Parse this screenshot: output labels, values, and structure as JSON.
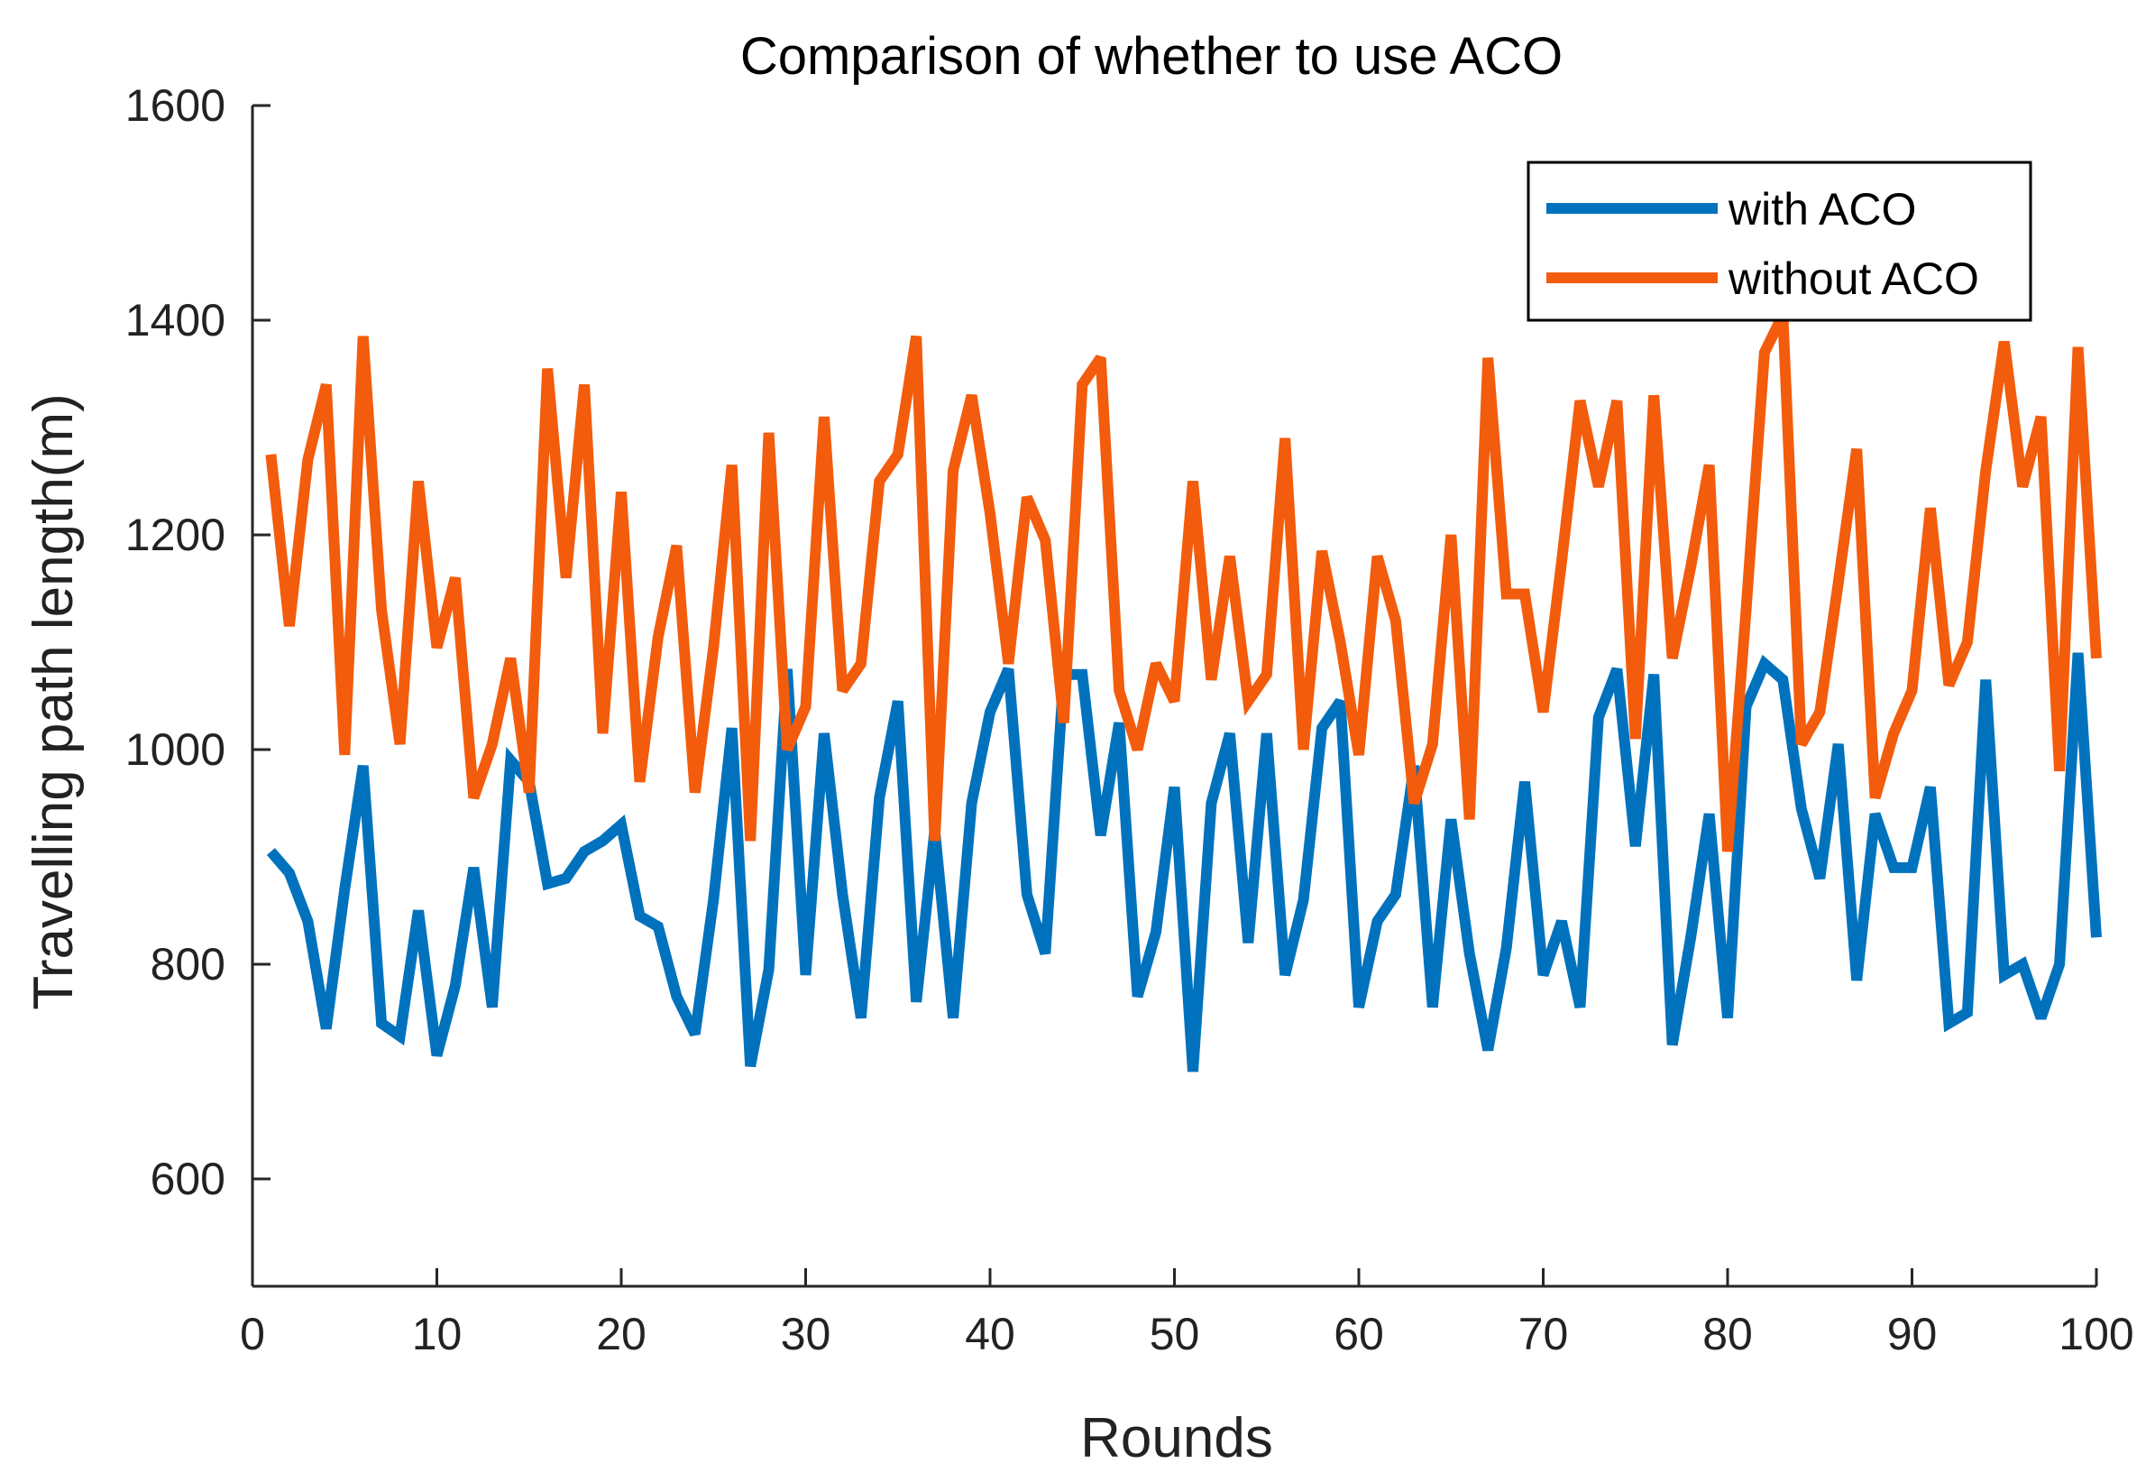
{
  "chart_data": {
    "type": "line",
    "title": "Comparison of whether to use ACO",
    "xlabel": "Rounds",
    "ylabel": "Travelling path length(m)",
    "xlim": [
      0,
      100
    ],
    "ylim": [
      500,
      1600
    ],
    "xticks": [
      0,
      10,
      20,
      30,
      40,
      50,
      60,
      70,
      80,
      90,
      100
    ],
    "yticks": [
      600,
      800,
      1000,
      1200,
      1400,
      1600
    ],
    "grid": false,
    "legend_position": "top-right",
    "series": [
      {
        "name": "with ACO",
        "color": "#0072BD",
        "x": [
          1,
          2,
          3,
          4,
          5,
          6,
          7,
          8,
          9,
          10,
          11,
          12,
          13,
          14,
          15,
          16,
          17,
          18,
          19,
          20,
          21,
          22,
          23,
          24,
          25,
          26,
          27,
          28,
          29,
          30,
          31,
          32,
          33,
          34,
          35,
          36,
          37,
          38,
          39,
          40,
          41,
          42,
          43,
          44,
          45,
          46,
          47,
          48,
          49,
          50,
          51,
          52,
          53,
          54,
          55,
          56,
          57,
          58,
          59,
          60,
          61,
          62,
          63,
          64,
          65,
          66,
          67,
          68,
          69,
          70,
          71,
          72,
          73,
          74,
          75,
          76,
          77,
          78,
          79,
          80,
          81,
          82,
          83,
          84,
          85,
          86,
          87,
          88,
          89,
          90,
          91,
          92,
          93,
          94,
          95,
          96,
          97,
          98,
          99,
          100
        ],
        "values": [
          905,
          885,
          840,
          740,
          870,
          985,
          745,
          733,
          850,
          715,
          780,
          890,
          760,
          990,
          970,
          875,
          880,
          905,
          915,
          930,
          845,
          835,
          770,
          735,
          860,
          1020,
          705,
          795,
          1075,
          790,
          1015,
          865,
          750,
          955,
          1045,
          765,
          925,
          750,
          950,
          1035,
          1075,
          865,
          810,
          1070,
          1070,
          920,
          1025,
          770,
          830,
          965,
          700,
          950,
          1015,
          820,
          1015,
          790,
          860,
          1020,
          1045,
          760,
          840,
          865,
          985,
          760,
          935,
          810,
          720,
          815,
          970,
          790,
          840,
          760,
          1030,
          1075,
          910,
          1070,
          725,
          825,
          940,
          750,
          1040,
          1080,
          1065,
          945,
          880,
          1005,
          785,
          940,
          890,
          890,
          965,
          745,
          755,
          1065,
          790,
          800,
          750,
          800,
          1090,
          825
        ]
      },
      {
        "name": "without ACO",
        "color": "#F25C0C",
        "x": [
          1,
          2,
          3,
          4,
          5,
          6,
          7,
          8,
          9,
          10,
          11,
          12,
          13,
          14,
          15,
          16,
          17,
          18,
          19,
          20,
          21,
          22,
          23,
          24,
          25,
          26,
          27,
          28,
          29,
          30,
          31,
          32,
          33,
          34,
          35,
          36,
          37,
          38,
          39,
          40,
          41,
          42,
          43,
          44,
          45,
          46,
          47,
          48,
          49,
          50,
          51,
          52,
          53,
          54,
          55,
          56,
          57,
          58,
          59,
          60,
          61,
          62,
          63,
          64,
          65,
          66,
          67,
          68,
          69,
          70,
          71,
          72,
          73,
          74,
          75,
          76,
          77,
          78,
          79,
          80,
          81,
          82,
          83,
          84,
          85,
          86,
          87,
          88,
          89,
          90,
          91,
          92,
          93,
          94,
          95,
          96,
          97,
          98,
          99,
          100
        ],
        "values": [
          1275,
          1115,
          1270,
          1340,
          995,
          1385,
          1130,
          1005,
          1250,
          1095,
          1160,
          955,
          1005,
          1085,
          960,
          1355,
          1160,
          1340,
          1015,
          1240,
          970,
          1105,
          1190,
          960,
          1095,
          1265,
          915,
          1295,
          1000,
          1040,
          1310,
          1055,
          1080,
          1250,
          1275,
          1385,
          915,
          1260,
          1330,
          1220,
          1080,
          1235,
          1195,
          1025,
          1340,
          1365,
          1055,
          1000,
          1080,
          1045,
          1250,
          1065,
          1180,
          1045,
          1070,
          1290,
          1000,
          1185,
          1100,
          995,
          1180,
          1120,
          950,
          1005,
          1200,
          935,
          1365,
          1145,
          1145,
          1035,
          1175,
          1325,
          1245,
          1325,
          1010,
          1330,
          1085,
          1170,
          1265,
          905,
          1130,
          1370,
          1405,
          1005,
          1035,
          1155,
          1280,
          955,
          1015,
          1055,
          1225,
          1060,
          1100,
          1260,
          1380,
          1245,
          1310,
          980,
          1375,
          1085
        ]
      }
    ]
  }
}
